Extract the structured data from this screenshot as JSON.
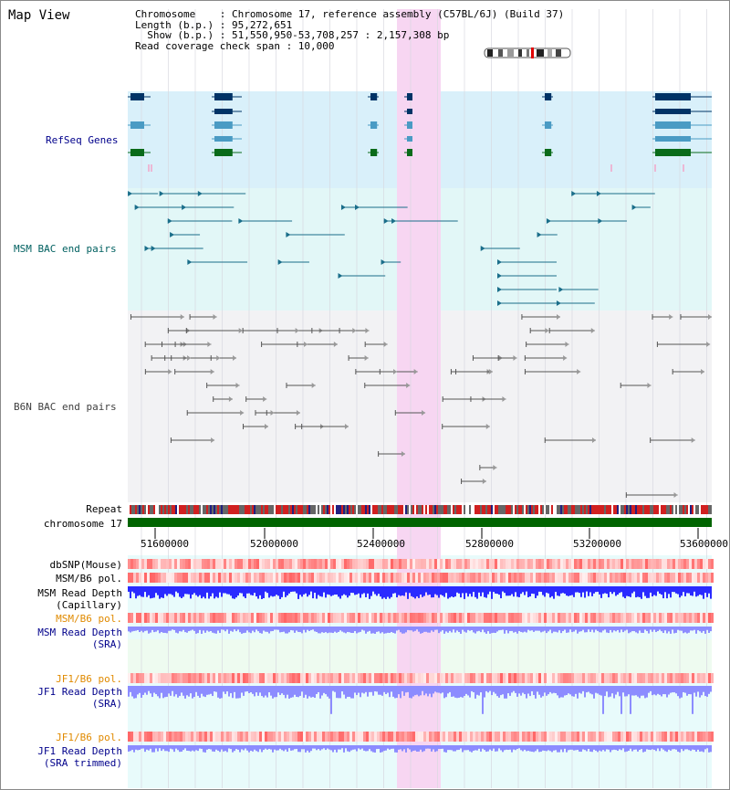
{
  "view_title": "Map View",
  "info": {
    "chromosome_line": "Chromosome    : Chromosome 17, reference assembly (C57BL/6J) (Build 37)",
    "length_line": "Length (b.p.) : 95,272,651",
    "show_line": "  Show (b.p.) : 51,550,950-53,708,257 : 2,157,308 bp",
    "span_line": "Read coverage check span : 10,000"
  },
  "tracks": {
    "refseq": "RefSeq Genes",
    "msm_bac": "MSM BAC end pairs",
    "b6n_bac": "B6N BAC end pairs",
    "repeat": "Repeat",
    "chromosome": "chromosome 17",
    "dbsnp": "dbSNP(Mouse)",
    "msm_b6_pol_1": "MSM/B6 pol.",
    "msm_depth_cap_1": "MSM Read Depth",
    "msm_depth_cap_2": "(Capillary)",
    "msm_b6_pol_2": "MSM/B6 pol.",
    "msm_depth_sra_1": "MSM Read Depth",
    "msm_depth_sra_2": "(SRA)",
    "jf1_pol_1": "JF1/B6 pol.",
    "jf1_depth_1": "JF1 Read Depth",
    "jf1_depth_2": "(SRA)",
    "jf1_pol_2": "JF1/B6 pol.",
    "jf1_trim_1": "JF1 Read Depth",
    "jf1_trim_2": "(SRA trimmed)"
  },
  "axis": {
    "ticks": [
      "51600000",
      "52000000",
      "52400000",
      "52800000",
      "53200000",
      "53600000"
    ]
  },
  "colors": {
    "highlight": "#f7d6f2",
    "refseq_bg": "#d9f0fa",
    "msm_bac_bg": "#e2f7f7",
    "b6n_bg": "#f2f2f4",
    "chromosome": "#006400",
    "label_navy": "#00008b",
    "label_teal": "#006060",
    "label_orange": "#e08a00",
    "depth_blue": "#2a2aff",
    "depth_light": "#8c8cff"
  }
}
